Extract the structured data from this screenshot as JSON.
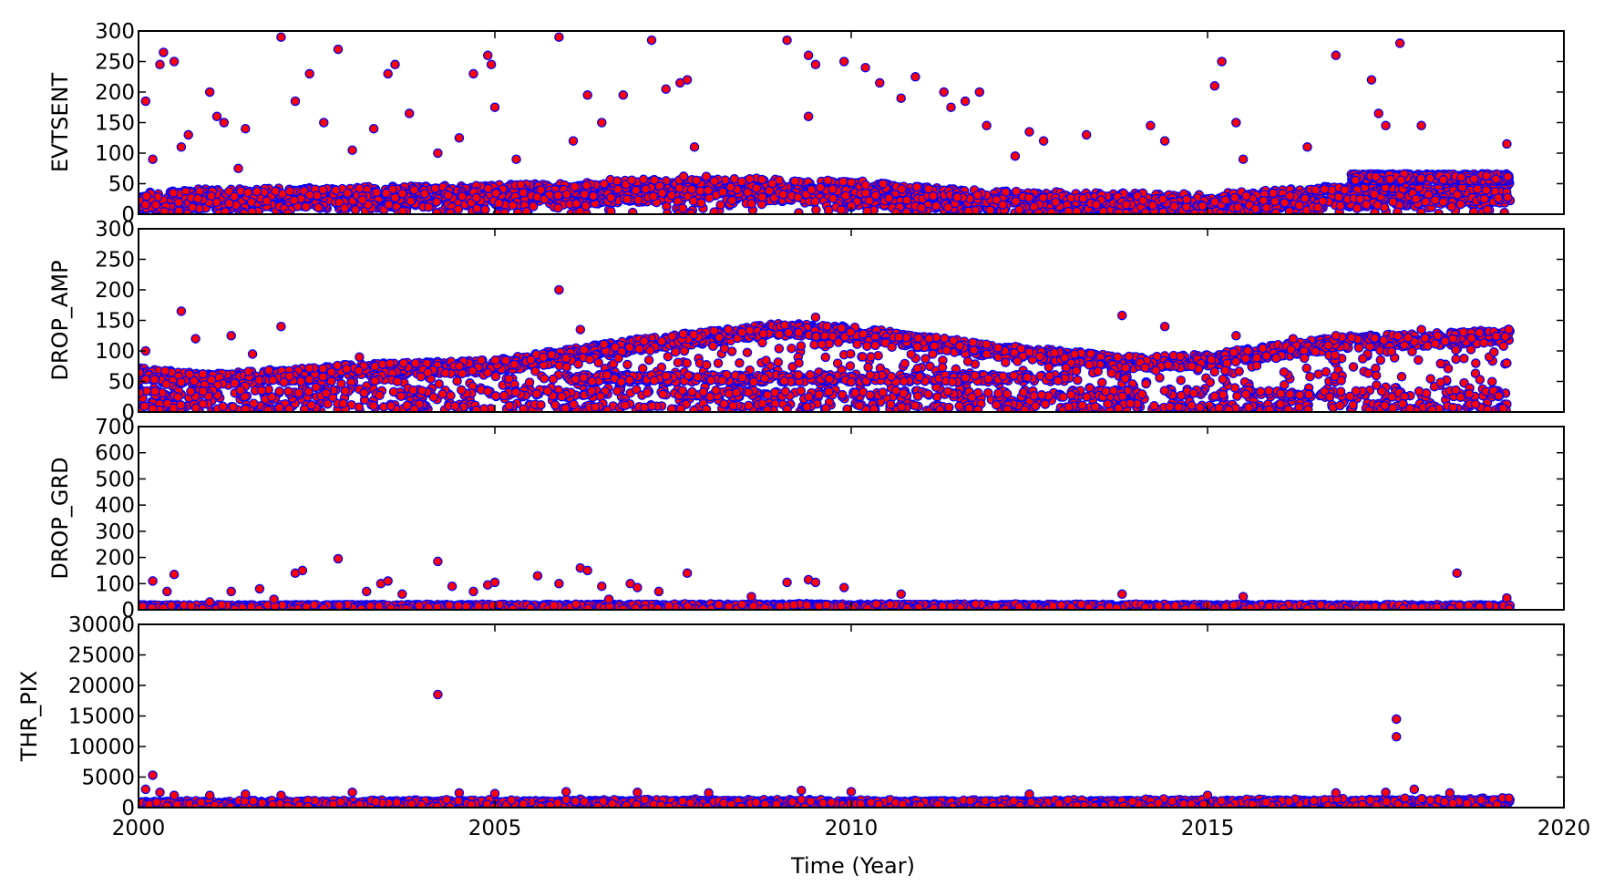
{
  "chart_data": {
    "type": "scatter",
    "xlabel": "Time (Year)",
    "x_ticks": [
      "2000",
      "2005",
      "2010",
      "2015",
      "2020"
    ],
    "xlim": [
      2000,
      2020
    ],
    "marker_fill": "#ff0000",
    "marker_edge": "#0000ff",
    "panels": [
      {
        "ylabel": "EVTSENT",
        "ylim": [
          0,
          300
        ],
        "y_ticks": [
          "0",
          "50",
          "100",
          "150",
          "200",
          "250",
          "300"
        ],
        "baseline": [
          [
            2000,
            22
          ],
          [
            2005,
            30
          ],
          [
            2008,
            40
          ],
          [
            2010,
            35
          ],
          [
            2012,
            20
          ],
          [
            2015,
            15
          ],
          [
            2017,
            30
          ],
          [
            2019.25,
            35
          ]
        ],
        "upper_band": [
          [
            2017.0,
            2019.25,
            60
          ]
        ],
        "outliers": [
          [
            2000.1,
            185
          ],
          [
            2000.3,
            245
          ],
          [
            2000.35,
            265
          ],
          [
            2000.5,
            250
          ],
          [
            2000.6,
            110
          ],
          [
            2000.7,
            130
          ],
          [
            2001,
            200
          ],
          [
            2001.1,
            160
          ],
          [
            2001.2,
            150
          ],
          [
            2001.4,
            75
          ],
          [
            2001.5,
            140
          ],
          [
            2002,
            290
          ],
          [
            2002.2,
            185
          ],
          [
            2002.4,
            230
          ],
          [
            2002.6,
            150
          ],
          [
            2002.8,
            270
          ],
          [
            2003.3,
            140
          ],
          [
            2003.5,
            230
          ],
          [
            2003.6,
            245
          ],
          [
            2003.8,
            165
          ],
          [
            2004.2,
            100
          ],
          [
            2004.5,
            125
          ],
          [
            2004.7,
            230
          ],
          [
            2004.9,
            260
          ],
          [
            2004.95,
            245
          ],
          [
            2005,
            175
          ],
          [
            2005.3,
            90
          ],
          [
            2005.9,
            290
          ],
          [
            2006.1,
            120
          ],
          [
            2006.3,
            195
          ],
          [
            2006.5,
            150
          ],
          [
            2006.8,
            195
          ],
          [
            2007.2,
            285
          ],
          [
            2007.4,
            205
          ],
          [
            2007.6,
            215
          ],
          [
            2007.7,
            220
          ],
          [
            2007.8,
            110
          ],
          [
            2009.1,
            285
          ],
          [
            2009.4,
            260
          ],
          [
            2009.5,
            245
          ],
          [
            2009.4,
            160
          ],
          [
            2009.9,
            250
          ],
          [
            2010.2,
            240
          ],
          [
            2010.4,
            215
          ],
          [
            2010.7,
            190
          ],
          [
            2010.9,
            225
          ],
          [
            2011.3,
            200
          ],
          [
            2011.4,
            175
          ],
          [
            2011.6,
            185
          ],
          [
            2011.8,
            200
          ],
          [
            2011.9,
            145
          ],
          [
            2012.5,
            135
          ],
          [
            2012.7,
            120
          ],
          [
            2013.3,
            130
          ],
          [
            2014.2,
            145
          ],
          [
            2014.4,
            120
          ],
          [
            2015.1,
            210
          ],
          [
            2015.2,
            250
          ],
          [
            2015.4,
            150
          ],
          [
            2015.5,
            90
          ],
          [
            2016.4,
            110
          ],
          [
            2016.8,
            260
          ],
          [
            2017.3,
            220
          ],
          [
            2017.4,
            165
          ],
          [
            2017.5,
            145
          ],
          [
            2017.7,
            280
          ],
          [
            2018.0,
            145
          ],
          [
            2019.2,
            115
          ],
          [
            2000.2,
            90
          ],
          [
            2003,
            105
          ],
          [
            2012.3,
            95
          ]
        ]
      },
      {
        "ylabel": "DROP_AMP",
        "ylim": [
          0,
          300
        ],
        "y_ticks": [
          "0",
          "50",
          "100",
          "150",
          "200",
          "250",
          "300"
        ],
        "baseline": [
          [
            2000,
            62
          ],
          [
            2001,
            52
          ],
          [
            2003,
            68
          ],
          [
            2005,
            75
          ],
          [
            2007,
            110
          ],
          [
            2009,
            135
          ],
          [
            2010,
            130
          ],
          [
            2011,
            115
          ],
          [
            2012,
            100
          ],
          [
            2013,
            90
          ],
          [
            2014,
            80
          ],
          [
            2015,
            85
          ],
          [
            2016,
            100
          ],
          [
            2017,
            115
          ],
          [
            2018,
            118
          ],
          [
            2019.25,
            125
          ]
        ],
        "lower_bands": [
          [
            2000,
            2019.25,
            30
          ],
          [
            2000,
            2019.25,
            8
          ],
          [
            2006,
            2013,
            55
          ]
        ],
        "outliers": [
          [
            2000.1,
            100
          ],
          [
            2000.6,
            165
          ],
          [
            2000.8,
            120
          ],
          [
            2001.3,
            125
          ],
          [
            2001.6,
            95
          ],
          [
            2002,
            140
          ],
          [
            2003.1,
            90
          ],
          [
            2005.9,
            200
          ],
          [
            2006.2,
            135
          ],
          [
            2009.5,
            155
          ],
          [
            2013.8,
            158
          ],
          [
            2014.4,
            140
          ],
          [
            2015.4,
            125
          ],
          [
            2016.2,
            120
          ],
          [
            2016.8,
            125
          ],
          [
            2018.0,
            135
          ],
          [
            2019.2,
            80
          ]
        ]
      },
      {
        "ylabel": "DROP_GRD",
        "ylim": [
          0,
          700
        ],
        "y_ticks": [
          "0",
          "100",
          "200",
          "300",
          "400",
          "500",
          "600",
          "700"
        ],
        "baseline": [
          [
            2000,
            12
          ],
          [
            2010,
            15
          ],
          [
            2019.25,
            12
          ]
        ],
        "outliers": [
          [
            2000.2,
            110
          ],
          [
            2000.4,
            70
          ],
          [
            2000.5,
            135
          ],
          [
            2001.0,
            30
          ],
          [
            2001.3,
            70
          ],
          [
            2001.7,
            80
          ],
          [
            2001.9,
            40
          ],
          [
            2002.2,
            140
          ],
          [
            2002.3,
            150
          ],
          [
            2002.8,
            195
          ],
          [
            2003.2,
            70
          ],
          [
            2003.4,
            100
          ],
          [
            2003.5,
            110
          ],
          [
            2003.7,
            60
          ],
          [
            2004.2,
            185
          ],
          [
            2004.4,
            90
          ],
          [
            2004.7,
            70
          ],
          [
            2004.9,
            95
          ],
          [
            2005.0,
            105
          ],
          [
            2005.6,
            130
          ],
          [
            2005.9,
            100
          ],
          [
            2006.2,
            160
          ],
          [
            2006.3,
            150
          ],
          [
            2006.5,
            90
          ],
          [
            2006.6,
            40
          ],
          [
            2006.9,
            100
          ],
          [
            2007.0,
            85
          ],
          [
            2007.3,
            70
          ],
          [
            2007.7,
            140
          ],
          [
            2008.6,
            50
          ],
          [
            2009.1,
            105
          ],
          [
            2009.4,
            115
          ],
          [
            2009.5,
            105
          ],
          [
            2009.9,
            85
          ],
          [
            2010.7,
            60
          ],
          [
            2013.8,
            60
          ],
          [
            2015.5,
            50
          ],
          [
            2018.5,
            140
          ],
          [
            2019.2,
            45
          ]
        ]
      },
      {
        "ylabel": "THR_PIX",
        "ylim": [
          0,
          30000
        ],
        "y_ticks": [
          "0",
          "5000",
          "10000",
          "15000",
          "20000",
          "25000",
          "30000"
        ],
        "baseline": [
          [
            2000,
            700
          ],
          [
            2008,
            900
          ],
          [
            2010,
            800
          ],
          [
            2015,
            900
          ],
          [
            2019.25,
            1000
          ]
        ],
        "outliers": [
          [
            2000.1,
            3000
          ],
          [
            2000.2,
            5300
          ],
          [
            2000.3,
            2500
          ],
          [
            2000.5,
            2000
          ],
          [
            2001.0,
            2000
          ],
          [
            2001.5,
            2200
          ],
          [
            2002,
            2000
          ],
          [
            2003,
            2500
          ],
          [
            2004.2,
            18500
          ],
          [
            2004.5,
            2400
          ],
          [
            2005,
            2300
          ],
          [
            2006,
            2600
          ],
          [
            2007,
            2500
          ],
          [
            2008,
            2400
          ],
          [
            2009.3,
            2800
          ],
          [
            2010,
            2600
          ],
          [
            2012.5,
            2200
          ],
          [
            2015,
            2000
          ],
          [
            2016.8,
            2400
          ],
          [
            2017.5,
            2500
          ],
          [
            2017.65,
            14500
          ],
          [
            2017.65,
            11600
          ],
          [
            2017.9,
            3000
          ],
          [
            2018.4,
            2400
          ]
        ]
      }
    ]
  }
}
